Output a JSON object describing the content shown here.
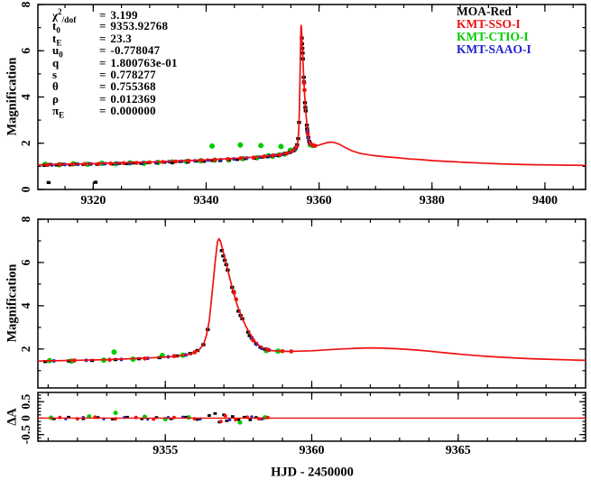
{
  "figure": {
    "background": "#ffffff"
  },
  "parameters": {
    "rows": [
      {
        "base": "χ",
        "sup": "2",
        "post": "/dof",
        "sub": "",
        "eq": "=",
        "value": "3.199"
      },
      {
        "base": "t",
        "sup": "",
        "post": "",
        "sub": "0",
        "eq": "=",
        "value": "9353.92768"
      },
      {
        "base": "t",
        "sup": "",
        "post": "",
        "sub": "E",
        "eq": "=",
        "value": "23.3"
      },
      {
        "base": "u",
        "sup": "",
        "post": "",
        "sub": "0",
        "eq": "=",
        "value": "-0.778047"
      },
      {
        "base": "q",
        "sup": "",
        "post": "",
        "sub": "",
        "eq": "=",
        "value": "1.800763e-01"
      },
      {
        "base": "s",
        "sup": "",
        "post": "",
        "sub": "",
        "eq": "=",
        "value": "0.778277"
      },
      {
        "base": "θ",
        "sup": "",
        "post": "",
        "sub": "",
        "eq": "=",
        "value": "0.755368"
      },
      {
        "base": "ρ",
        "sup": "",
        "post": "",
        "sub": "",
        "eq": "=",
        "value": "0.012369"
      },
      {
        "base": "π",
        "sup": "",
        "post": "",
        "sub": "E",
        "eq": "=",
        "value": "0.000000"
      }
    ]
  },
  "legend": {
    "items": [
      {
        "label": "MOA-Red",
        "color": "#000000"
      },
      {
        "label": "KMT-SSO-I",
        "color": "#ee1111"
      },
      {
        "label": "KMT-CTIO-I",
        "color": "#00cc00"
      },
      {
        "label": "KMT-SAAO-I",
        "color": "#2222cc"
      }
    ]
  },
  "chart_data": {
    "type": "line",
    "xlabel": "HJD - 2450000",
    "model_color": "#ee1111",
    "panels": [
      {
        "name": "magnification-full",
        "ylabel": "Magnification",
        "xlim": [
          9310.2,
          9407.2
        ],
        "ylim": [
          0,
          8
        ],
        "xticks": [
          9320,
          9340,
          9360,
          9380,
          9400
        ],
        "xminor_step": 5,
        "yticks": [
          0,
          2,
          4,
          6,
          8
        ],
        "yminor_step": 1,
        "show_xlabels": true
      },
      {
        "name": "magnification-zoom",
        "ylabel": "Magnification",
        "xlim": [
          9350.65,
          9369.35
        ],
        "ylim": [
          0.2,
          8
        ],
        "xticks": [
          9355,
          9360,
          9365
        ],
        "xminor_step": 1,
        "yticks": [
          2,
          4,
          6,
          8
        ],
        "yminor_step": 1,
        "show_xlabels": false
      },
      {
        "name": "residual",
        "ylabel": "ΔA",
        "xlim": [
          9350.65,
          9369.35
        ],
        "ylim": [
          -0.7,
          0.78
        ],
        "xticks": [
          9355,
          9360,
          9365
        ],
        "xminor_step": 1,
        "yticks": [
          0.5,
          0,
          -0.5
        ],
        "ytick_labels": [
          "0.5",
          "0",
          "-0.5"
        ],
        "yminor_step": 0.1,
        "show_xlabels": true
      }
    ],
    "model_curve": [
      [
        9310,
        1.06
      ],
      [
        9313,
        1.08
      ],
      [
        9316,
        1.1
      ],
      [
        9319,
        1.11
      ],
      [
        9322,
        1.13
      ],
      [
        9325,
        1.15
      ],
      [
        9328,
        1.17
      ],
      [
        9331,
        1.19
      ],
      [
        9334,
        1.22
      ],
      [
        9337,
        1.25
      ],
      [
        9340,
        1.28
      ],
      [
        9343,
        1.32
      ],
      [
        9346,
        1.36
      ],
      [
        9348,
        1.39
      ],
      [
        9350,
        1.43
      ],
      [
        9351,
        1.45
      ],
      [
        9352,
        1.48
      ],
      [
        9353,
        1.51
      ],
      [
        9354,
        1.56
      ],
      [
        9354.8,
        1.61
      ],
      [
        9355.4,
        1.67
      ],
      [
        9355.8,
        1.75
      ],
      [
        9356.0,
        1.83
      ],
      [
        9356.15,
        1.95
      ],
      [
        9356.3,
        2.2
      ],
      [
        9356.4,
        2.6
      ],
      [
        9356.5,
        3.3
      ],
      [
        9356.6,
        4.6
      ],
      [
        9356.7,
        6.0
      ],
      [
        9356.78,
        6.95
      ],
      [
        9356.83,
        7.1
      ],
      [
        9356.88,
        7.0
      ],
      [
        9356.95,
        6.65
      ],
      [
        9357.05,
        6.1
      ],
      [
        9357.15,
        5.55
      ],
      [
        9357.3,
        4.75
      ],
      [
        9357.45,
        4.05
      ],
      [
        9357.6,
        3.5
      ],
      [
        9357.75,
        3.05
      ],
      [
        9357.9,
        2.68
      ],
      [
        9358.05,
        2.38
      ],
      [
        9358.2,
        2.16
      ],
      [
        9358.4,
        2.0
      ],
      [
        9358.6,
        1.93
      ],
      [
        9358.9,
        1.9
      ],
      [
        9359.2,
        1.89
      ],
      [
        9359.6,
        1.9
      ],
      [
        9360,
        1.92
      ],
      [
        9360.5,
        1.96
      ],
      [
        9361,
        2.0
      ],
      [
        9361.5,
        2.03
      ],
      [
        9362,
        2.05
      ],
      [
        9362.4,
        2.04
      ],
      [
        9362.8,
        2.02
      ],
      [
        9363.2,
        1.99
      ],
      [
        9363.6,
        1.95
      ],
      [
        9364,
        1.9
      ],
      [
        9364.5,
        1.83
      ],
      [
        9365,
        1.77
      ],
      [
        9365.5,
        1.71
      ],
      [
        9366,
        1.66
      ],
      [
        9366.5,
        1.62
      ],
      [
        9367,
        1.58
      ],
      [
        9367.5,
        1.55
      ],
      [
        9368,
        1.53
      ],
      [
        9369,
        1.49
      ],
      [
        9370,
        1.46
      ],
      [
        9372,
        1.41
      ],
      [
        9374,
        1.37
      ],
      [
        9376,
        1.32
      ],
      [
        9378,
        1.29
      ],
      [
        9380,
        1.25
      ],
      [
        9383,
        1.21
      ],
      [
        9386,
        1.17
      ],
      [
        9389,
        1.14
      ],
      [
        9392,
        1.11
      ],
      [
        9395,
        1.09
      ],
      [
        9398,
        1.07
      ],
      [
        9401,
        1.06
      ],
      [
        9404,
        1.05
      ],
      [
        9407.2,
        1.04
      ]
    ],
    "series": [
      {
        "name": "MOA-Red",
        "color": "#000000",
        "marker": "square",
        "points": [
          [
            9311.3,
            1.05
          ],
          [
            9312.4,
            1.08
          ],
          [
            9313.5,
            1.06
          ],
          [
            9314.7,
            1.09
          ],
          [
            9315.9,
            1.07
          ],
          [
            9317.1,
            1.1
          ],
          [
            9318.3,
            1.08
          ],
          [
            9319.5,
            1.11
          ],
          [
            9320.7,
            1.09
          ],
          [
            9322,
            1.12
          ],
          [
            9323.3,
            1.1
          ],
          [
            9324.6,
            1.13
          ],
          [
            9325.9,
            1.12
          ],
          [
            9327.2,
            1.15
          ],
          [
            9328.5,
            1.13
          ],
          [
            9329.8,
            1.16
          ],
          [
            9331.2,
            1.15
          ],
          [
            9332.6,
            1.18
          ],
          [
            9334,
            1.17
          ],
          [
            9335.4,
            1.21
          ],
          [
            9336.8,
            1.19
          ],
          [
            9338.2,
            1.23
          ],
          [
            9339.6,
            1.22
          ],
          [
            9341,
            1.26
          ],
          [
            9342.5,
            1.25
          ],
          [
            9344,
            1.29
          ],
          [
            9345.5,
            1.3
          ],
          [
            9347,
            1.34
          ],
          [
            9348.5,
            1.35
          ],
          [
            9349.8,
            1.4
          ],
          [
            9350.9,
            1.42
          ],
          [
            9351.7,
            1.45
          ],
          [
            9352.5,
            1.47
          ],
          [
            9353.3,
            1.51
          ],
          [
            9354.1,
            1.55
          ],
          [
            9354.8,
            1.6
          ],
          [
            9355.4,
            1.68
          ],
          [
            9355.85,
            1.79
          ],
          [
            9356.1,
            1.93
          ],
          [
            9356.3,
            2.2
          ],
          [
            9356.45,
            2.9
          ],
          [
            9356.93,
            6.55
          ],
          [
            9356.98,
            6.3
          ],
          [
            9357.03,
            6.1
          ],
          [
            9357.08,
            5.9
          ],
          [
            9357.13,
            5.65
          ],
          [
            9357.28,
            4.85
          ],
          [
            9357.33,
            4.65
          ],
          [
            9357.5,
            3.75
          ],
          [
            9357.57,
            3.55
          ],
          [
            9357.63,
            3.4
          ],
          [
            9357.83,
            2.78
          ],
          [
            9357.88,
            2.62
          ],
          [
            9357.95,
            2.5
          ],
          [
            9358.1,
            2.25
          ],
          [
            9358.25,
            2.08
          ],
          [
            9358.4,
            2.0
          ],
          [
            9312.1,
            0.3
          ],
          [
            9320.4,
            0.31
          ]
        ],
        "residuals": [
          [
            9351.2,
            -0.02
          ],
          [
            9351.7,
            0.03
          ],
          [
            9352.2,
            -0.02
          ],
          [
            9352.7,
            0.02
          ],
          [
            9353.2,
            -0.03
          ],
          [
            9353.7,
            0.03
          ],
          [
            9354.2,
            -0.02
          ],
          [
            9354.7,
            0.02
          ],
          [
            9355.2,
            -0.02
          ],
          [
            9355.7,
            0.03
          ],
          [
            9356.1,
            -0.04
          ],
          [
            9356.5,
            0.08
          ],
          [
            9356.7,
            0.14
          ],
          [
            9356.85,
            -0.12
          ],
          [
            9357.0,
            0.1
          ],
          [
            9357.1,
            -0.08
          ],
          [
            9357.3,
            0.05
          ],
          [
            9357.5,
            -0.04
          ],
          [
            9357.7,
            0.03
          ],
          [
            9357.9,
            -0.05
          ],
          [
            9358.1,
            0.02
          ],
          [
            9358.3,
            -0.02
          ]
        ]
      },
      {
        "name": "KMT-SSO-I",
        "color": "#ee1111",
        "marker": "circle",
        "points": [
          [
            9311.9,
            1.06
          ],
          [
            9314.1,
            1.08
          ],
          [
            9316.3,
            1.09
          ],
          [
            9318.5,
            1.1
          ],
          [
            9320.9,
            1.1
          ],
          [
            9323.1,
            1.12
          ],
          [
            9325.4,
            1.14
          ],
          [
            9327.7,
            1.15
          ],
          [
            9330,
            1.17
          ],
          [
            9332.3,
            1.19
          ],
          [
            9334.6,
            1.21
          ],
          [
            9336.9,
            1.24
          ],
          [
            9339.2,
            1.26
          ],
          [
            9341.5,
            1.28
          ],
          [
            9343.8,
            1.31
          ],
          [
            9346.1,
            1.35
          ],
          [
            9348.4,
            1.38
          ],
          [
            9350.3,
            1.43
          ],
          [
            9351.9,
            1.47
          ],
          [
            9353.1,
            1.5
          ],
          [
            9354.3,
            1.56
          ],
          [
            9355.3,
            1.67
          ],
          [
            9356.0,
            1.85
          ],
          [
            9357.35,
            4.6
          ],
          [
            9357.42,
            4.3
          ],
          [
            9358.0,
            2.4
          ],
          [
            9358.5,
            1.97
          ],
          [
            9359.0,
            1.9
          ],
          [
            9359.3,
            1.89
          ]
        ],
        "residuals": [
          [
            9351.4,
            0.02
          ],
          [
            9352.0,
            -0.02
          ],
          [
            9352.6,
            0.03
          ],
          [
            9353.3,
            -0.02
          ],
          [
            9354.0,
            0.02
          ],
          [
            9354.6,
            -0.03
          ],
          [
            9355.3,
            0.02
          ],
          [
            9356.0,
            -0.02
          ],
          [
            9356.9,
            -0.1
          ],
          [
            9357.05,
            0.07
          ],
          [
            9357.4,
            -0.05
          ],
          [
            9357.8,
            0.03
          ],
          [
            9358.2,
            -0.02
          ],
          [
            9358.5,
            0.02
          ]
        ]
      },
      {
        "name": "KMT-CTIO-I",
        "color": "#00cc00",
        "marker": "circle_lg",
        "points": [
          [
            9311.5,
            1.09
          ],
          [
            9314,
            1.07
          ],
          [
            9316.5,
            1.11
          ],
          [
            9319,
            1.09
          ],
          [
            9321.5,
            1.13
          ],
          [
            9324,
            1.11
          ],
          [
            9326.5,
            1.15
          ],
          [
            9329,
            1.13
          ],
          [
            9331.5,
            1.17
          ],
          [
            9334,
            1.19
          ],
          [
            9336.5,
            1.21
          ],
          [
            9339,
            1.24
          ],
          [
            9341.05,
            1.88
          ],
          [
            9341.5,
            1.27
          ],
          [
            9344,
            1.28
          ],
          [
            9346.05,
            1.92
          ],
          [
            9346.5,
            1.33
          ],
          [
            9349,
            1.37
          ],
          [
            9349.7,
            1.9
          ],
          [
            9351.05,
            1.46
          ],
          [
            9351.8,
            1.44
          ],
          [
            9352.9,
            1.49
          ],
          [
            9353.25,
            1.86
          ],
          [
            9353.9,
            1.53
          ],
          [
            9354.9,
            1.7
          ],
          [
            9355.6,
            1.71
          ],
          [
            9358.45,
            1.93
          ],
          [
            9358.85,
            1.9
          ]
        ],
        "residuals": [
          [
            9351.1,
            0.01
          ],
          [
            9352.4,
            0.05
          ],
          [
            9353.3,
            0.16
          ],
          [
            9354.3,
            0.04
          ],
          [
            9355.0,
            -0.03
          ],
          [
            9355.8,
            0.02
          ],
          [
            9357.55,
            -0.13
          ],
          [
            9358.4,
            0.02
          ]
        ]
      },
      {
        "name": "KMT-SAAO-I",
        "color": "#2222cc",
        "marker": "circle_sm",
        "points": [
          [
            9312.7,
            1.06
          ],
          [
            9315,
            1.08
          ],
          [
            9317.3,
            1.09
          ],
          [
            9319.6,
            1.1
          ],
          [
            9321.9,
            1.11
          ],
          [
            9324.2,
            1.13
          ],
          [
            9326.5,
            1.14
          ],
          [
            9328.8,
            1.16
          ],
          [
            9331.1,
            1.17
          ],
          [
            9333.4,
            1.2
          ],
          [
            9335.7,
            1.22
          ],
          [
            9338,
            1.24
          ],
          [
            9340.3,
            1.27
          ],
          [
            9342.6,
            1.29
          ],
          [
            9344.9,
            1.32
          ],
          [
            9347.2,
            1.36
          ],
          [
            9349.5,
            1.4
          ],
          [
            9351.2,
            1.45
          ],
          [
            9352.3,
            1.48
          ],
          [
            9353.5,
            1.52
          ],
          [
            9354.4,
            1.57
          ],
          [
            9355.1,
            1.64
          ],
          [
            9355.7,
            1.73
          ],
          [
            9357.95,
            2.52
          ],
          [
            9358.12,
            2.22
          ],
          [
            9358.3,
            2.03
          ],
          [
            9358.55,
            1.95
          ]
        ],
        "residuals": [
          [
            9351.6,
            -0.02
          ],
          [
            9352.2,
            0.02
          ],
          [
            9352.9,
            -0.02
          ],
          [
            9353.6,
            0.02
          ],
          [
            9354.4,
            -0.03
          ],
          [
            9355.1,
            0.02
          ],
          [
            9355.6,
            0.03
          ],
          [
            9356.2,
            -0.02
          ],
          [
            9357.2,
            -0.05
          ],
          [
            9357.95,
            0.04
          ],
          [
            9358.3,
            -0.02
          ]
        ]
      }
    ]
  }
}
